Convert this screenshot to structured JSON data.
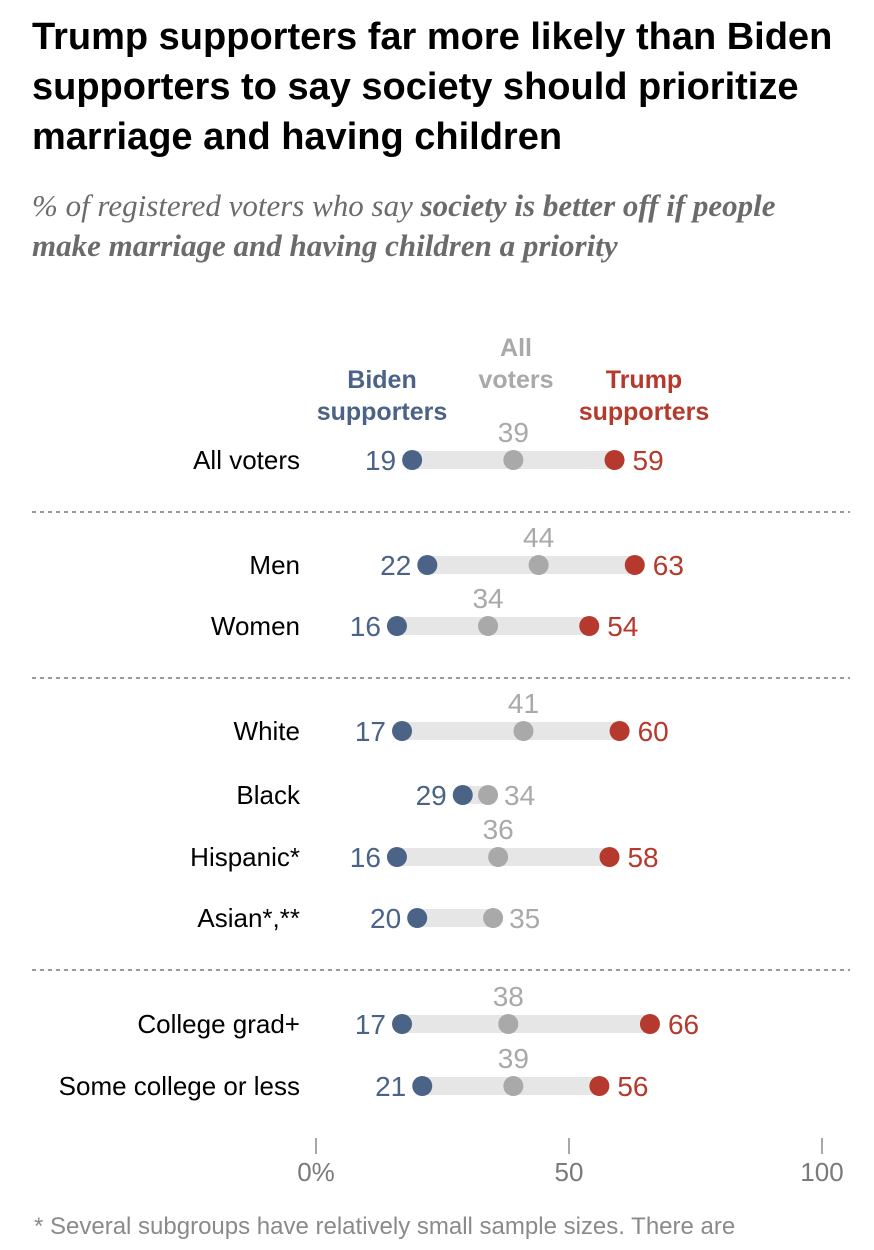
{
  "title": "Trump supporters far more likely than Biden supporters to say society should prioritize marriage and having children",
  "subtitle": {
    "plain": "% of registered voters who say ",
    "bold": "society is better off if people make marriage and having children a priority"
  },
  "footnote": "* Several subgroups have relatively small sample sizes. There are",
  "colors": {
    "biden": "#4a6387",
    "all": "#a9a9a9",
    "trump": "#b53a2d",
    "bar": "#e6e6e6"
  },
  "chart_data": {
    "type": "dot",
    "legend": [
      {
        "key": "biden",
        "lines": [
          "Biden",
          "supporters"
        ]
      },
      {
        "key": "all",
        "lines": [
          "All",
          "voters"
        ]
      },
      {
        "key": "trump",
        "lines": [
          "Trump",
          "supporters"
        ]
      }
    ],
    "xlim": [
      0,
      100
    ],
    "ticks": [
      {
        "value": 0,
        "label": "0%"
      },
      {
        "value": 50,
        "label": "50"
      },
      {
        "value": 100,
        "label": "100"
      }
    ],
    "rows": [
      {
        "label": "All voters",
        "biden": 19,
        "all": 39,
        "trump": 59,
        "group": 0
      },
      {
        "label": "Men",
        "biden": 22,
        "all": 44,
        "trump": 63,
        "group": 1
      },
      {
        "label": "Women",
        "biden": 16,
        "all": 34,
        "trump": 54,
        "group": 1
      },
      {
        "label": "White",
        "biden": 17,
        "all": 41,
        "trump": 60,
        "group": 2
      },
      {
        "label": "Black",
        "biden": 29,
        "all": 34,
        "trump": null,
        "group": 2
      },
      {
        "label": "Hispanic*",
        "biden": 16,
        "all": 36,
        "trump": 58,
        "group": 2
      },
      {
        "label": "Asian*,**",
        "biden": 20,
        "all": 35,
        "trump": null,
        "group": 2
      },
      {
        "label": "College grad+",
        "biden": 17,
        "all": 38,
        "trump": 66,
        "group": 3
      },
      {
        "label": "Some college or less",
        "biden": 21,
        "all": 39,
        "trump": 56,
        "group": 3
      }
    ]
  }
}
